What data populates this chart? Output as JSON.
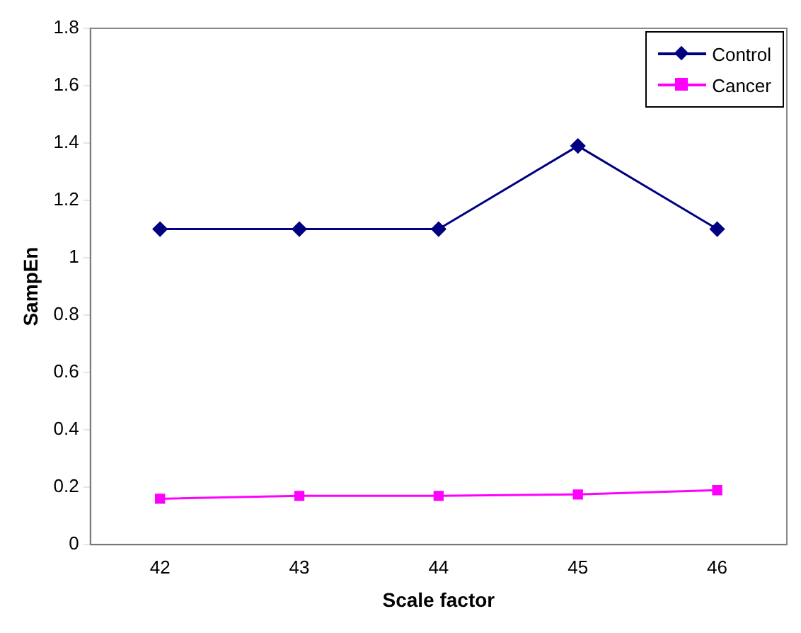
{
  "chart_data": {
    "type": "line",
    "xlabel": "Scale factor",
    "ylabel": "SampEn",
    "categories": [
      "42",
      "43",
      "44",
      "45",
      "46"
    ],
    "series": [
      {
        "name": "Control",
        "color": "#000080",
        "marker": "diamond",
        "values": [
          1.1,
          1.1,
          1.1,
          1.39,
          1.1
        ]
      },
      {
        "name": "Cancer",
        "color": "#ff00ff",
        "marker": "square",
        "values": [
          0.16,
          0.17,
          0.17,
          0.175,
          0.19
        ]
      }
    ],
    "ylim": [
      0,
      1.8
    ],
    "yticks": [
      0,
      0.2,
      0.4,
      0.6,
      0.8,
      1,
      1.2,
      1.4,
      1.6,
      1.8
    ],
    "grid": false,
    "legend": "top right",
    "line_style": "solid"
  }
}
